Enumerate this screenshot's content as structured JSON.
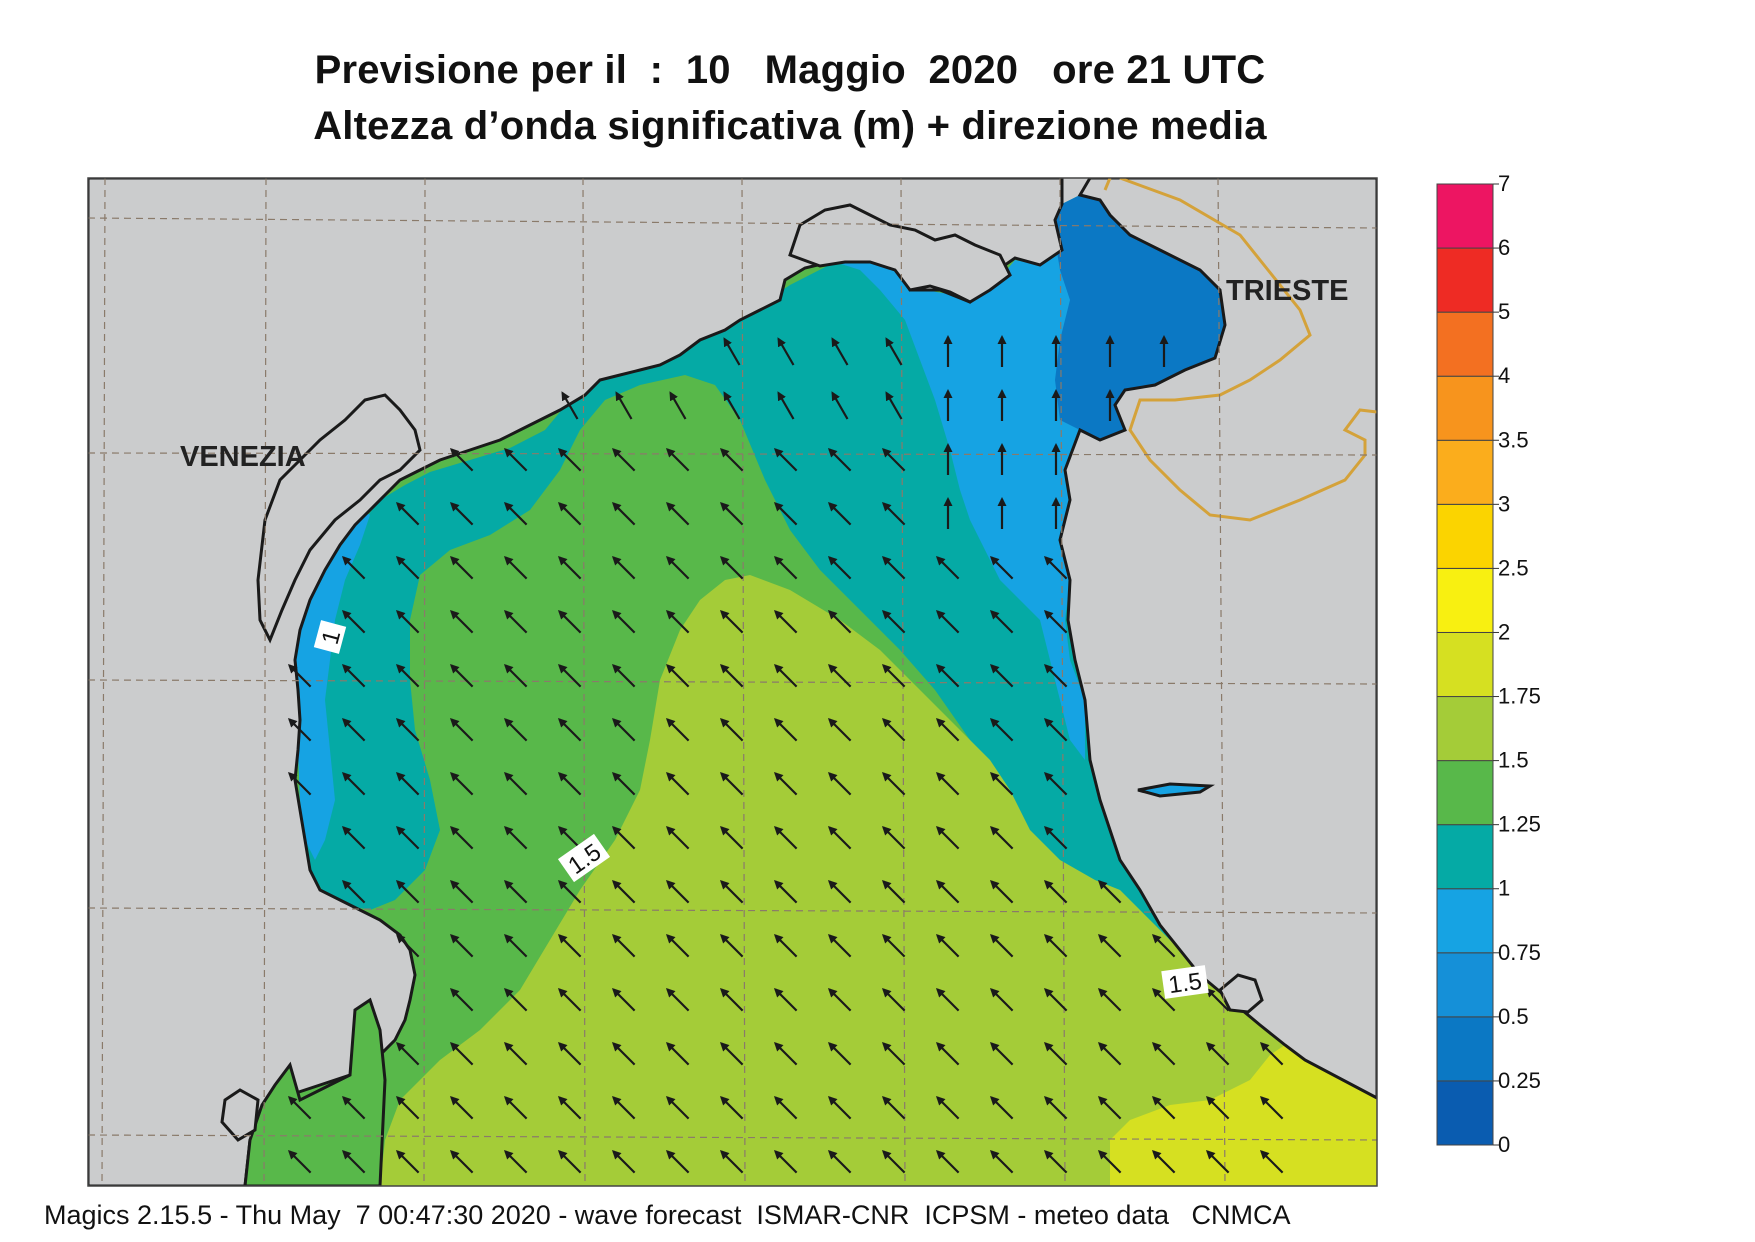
{
  "title_line1": "Previsione per il  :  10   Maggio  2020   ore 21 UTC",
  "title_line2": "Altezza d’onda significativa (m) + direzione media",
  "footer": "Magics 2.15.5 - Thu May  7 00:47:30 2020 - wave forecast  ISMAR-CNR  ICPSM - meteo data   CNMCA",
  "map": {
    "cities": [
      "VENEZIA",
      "TRIESTE"
    ],
    "contour_labels": [
      "1",
      "1.5",
      "1.5"
    ],
    "arrow_direction": "north-west"
  },
  "legend": {
    "unit": "m",
    "ticks": [
      "7",
      "6",
      "5",
      "4",
      "3.5",
      "3",
      "2.5",
      "2",
      "1.75",
      "1.5",
      "1.25",
      "1",
      "0.75",
      "0.5",
      "0.25",
      "0"
    ],
    "colors_bottom_to_top": [
      "#0a5cb0",
      "#0b78c4",
      "#1590d8",
      "#16a3e3",
      "#05aaa5",
      "#58b84a",
      "#a4cc38",
      "#d6e021",
      "#f8f011",
      "#fbd400",
      "#fbad1c",
      "#f7941d",
      "#f37021",
      "#ee2b24",
      "#ed1562"
    ]
  },
  "colors": {
    "land": "#cbcccd",
    "coast": "#1a1a1a",
    "border": "#d4a23a",
    "grid": "#8a7a6a"
  }
}
